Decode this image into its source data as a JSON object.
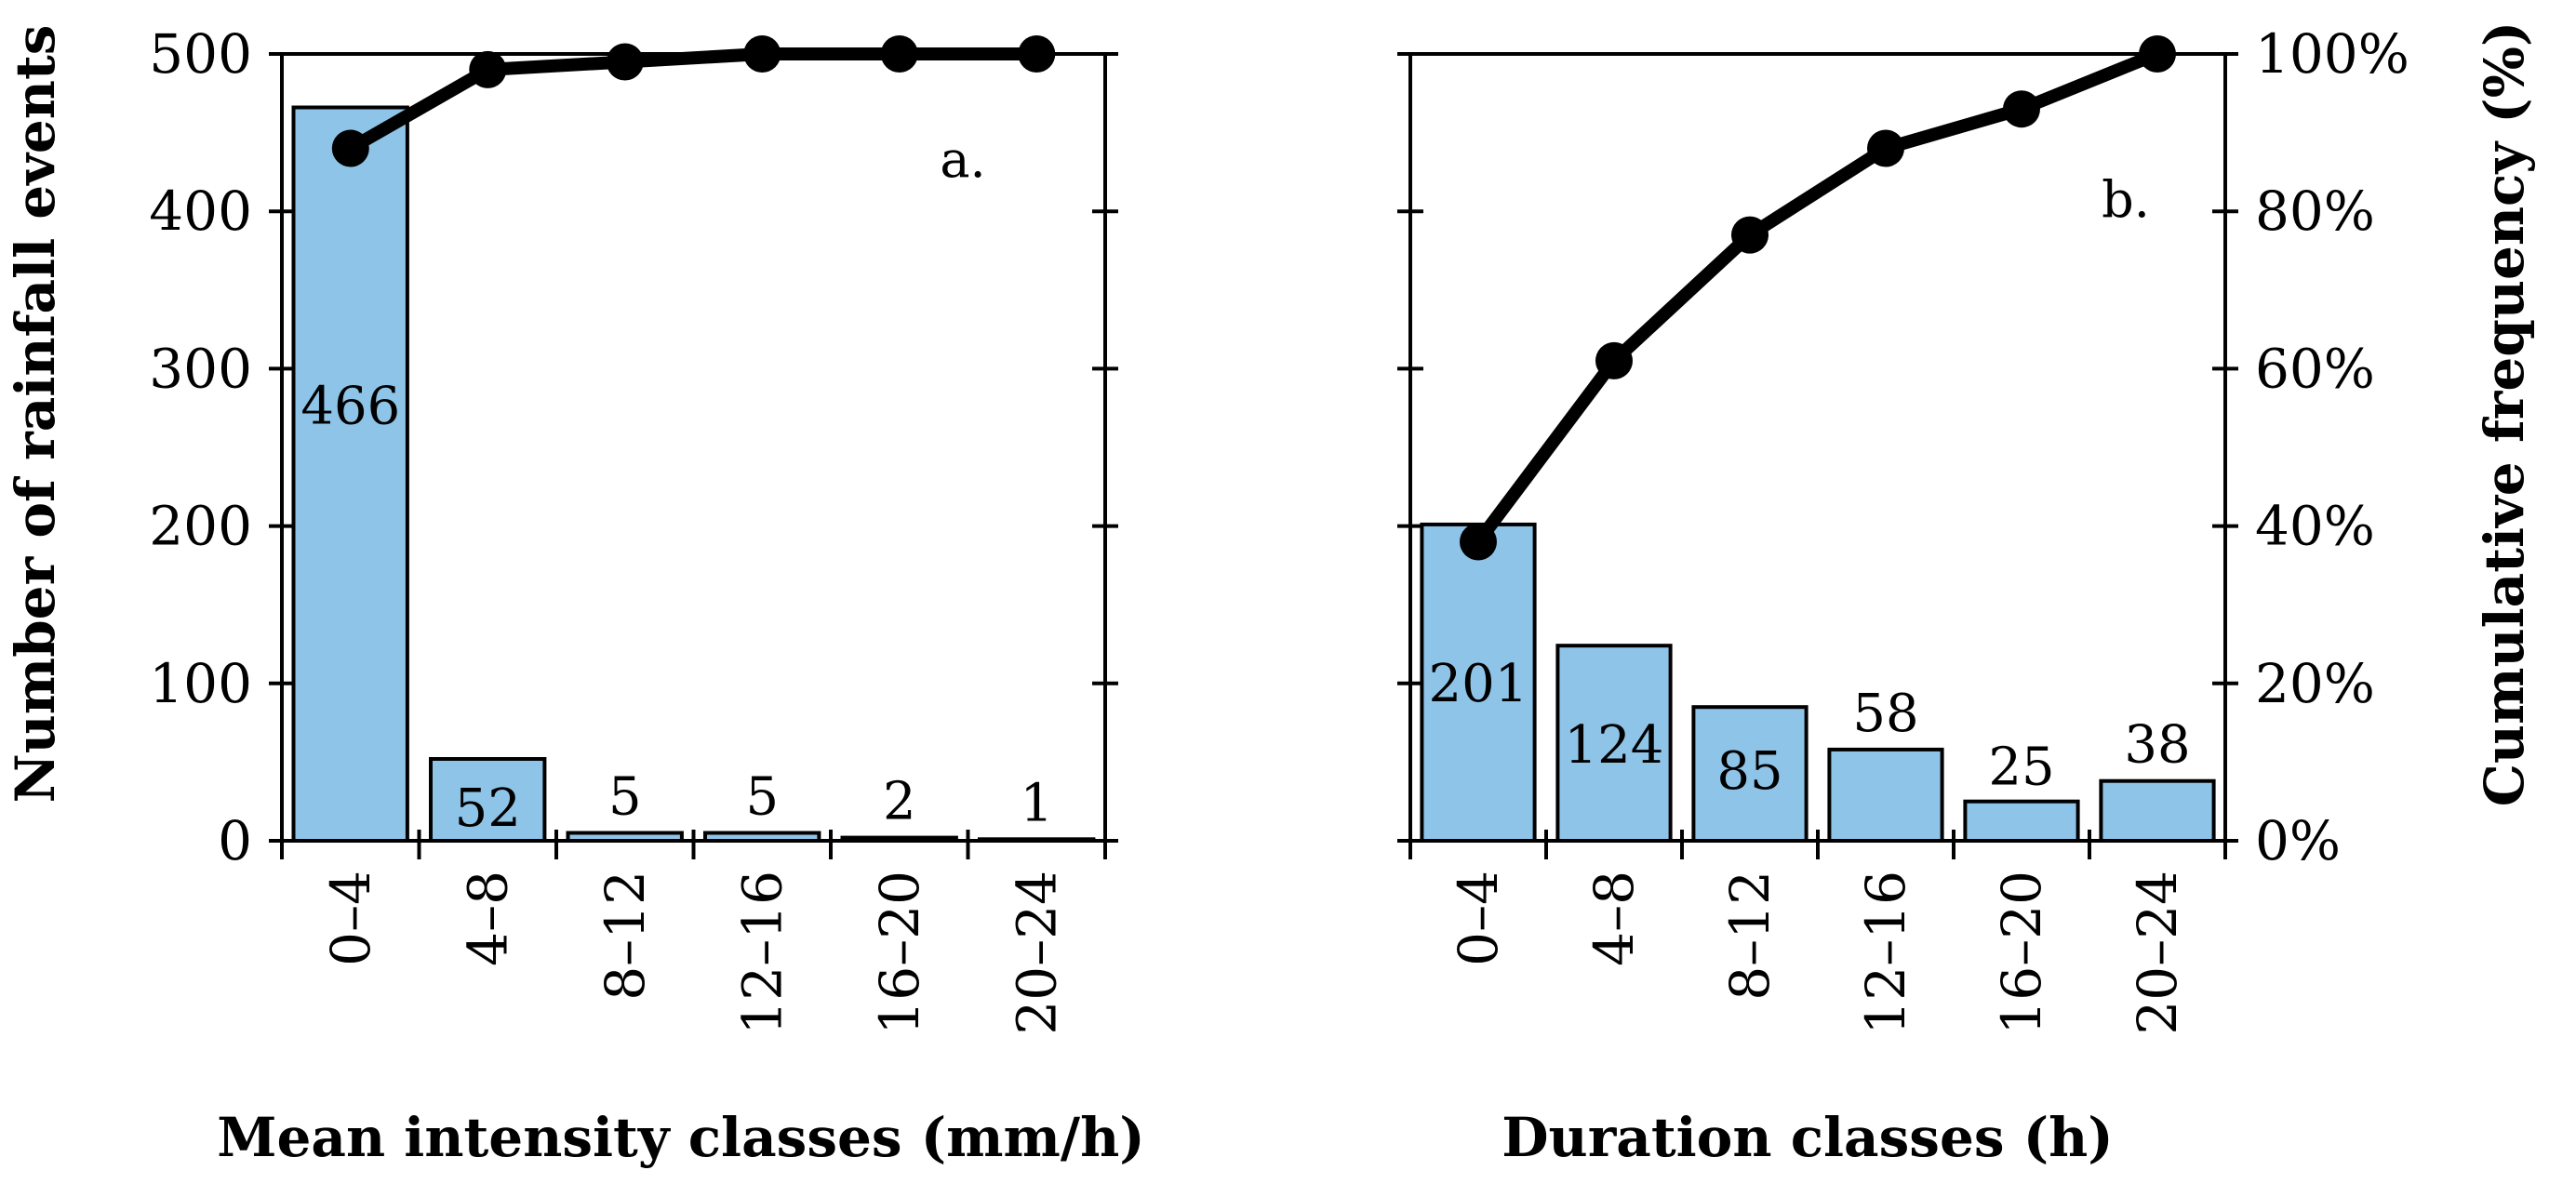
{
  "chart_data": [
    {
      "type": "bar",
      "panel_label": "a.",
      "title": "",
      "xlabel": "Mean intensity classes (mm/h)",
      "ylabel": "Number of rainfall events",
      "categories": [
        "0–4",
        "4–8",
        "8–12",
        "12–16",
        "16–20",
        "20–24"
      ],
      "values": [
        466,
        52,
        5,
        5,
        2,
        1
      ],
      "value_labels": [
        "466",
        "52",
        "5",
        "5",
        "2",
        "1"
      ],
      "ylim": [
        0,
        500
      ],
      "yticks": [
        "0",
        "100",
        "200",
        "300",
        "400",
        "500"
      ],
      "cumulative": [
        88,
        98,
        99,
        100,
        100,
        100
      ],
      "y2lim": [
        0,
        100
      ],
      "bar_color": "#8ec4e8",
      "line_color": "#000000"
    },
    {
      "type": "bar",
      "panel_label": "b.",
      "title": "",
      "xlabel": "Duration classes (h)",
      "ylabel": "Cumulative frequency (%)",
      "categories": [
        "0–4",
        "4–8",
        "8–12",
        "12–16",
        "16–20",
        "20–24"
      ],
      "values": [
        201,
        124,
        85,
        58,
        25,
        38
      ],
      "value_labels": [
        "201",
        "124",
        "85",
        "58",
        "25",
        "38"
      ],
      "ylim": [
        0,
        500
      ],
      "cumulative": [
        38,
        61,
        77,
        88,
        93,
        100
      ],
      "y2lim": [
        0,
        100
      ],
      "y2ticks": [
        "0%",
        "20%",
        "40%",
        "60%",
        "80%",
        "100%"
      ],
      "bar_color": "#8ec4e8",
      "line_color": "#000000"
    }
  ]
}
